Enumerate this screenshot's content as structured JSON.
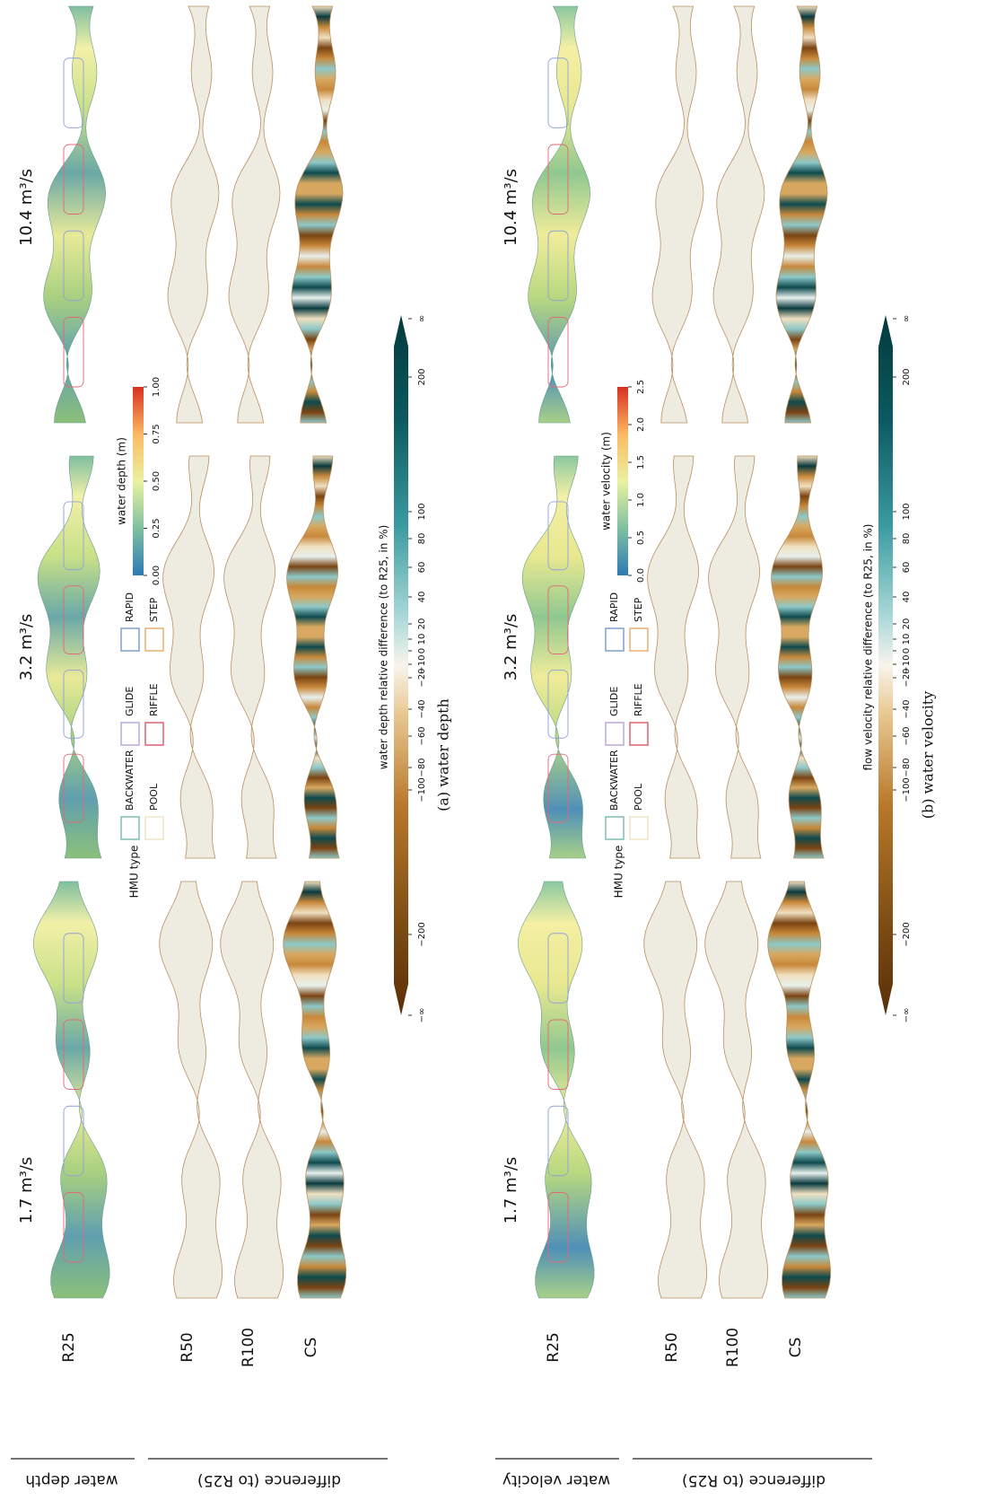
{
  "panels": [
    {
      "row_groups": [
        "water depth",
        "difference (to R25)"
      ],
      "columns": [
        "1.7 m³/s",
        "3.2 m³/s",
        "10.4 m³/s"
      ],
      "rows": [
        "R25",
        "R50",
        "R100",
        "CS"
      ],
      "legend": {
        "title": "HMU type",
        "items": [
          "BACKWATER",
          "GLIDE",
          "RAPID",
          "POOL",
          "RIFFLE",
          "STEP"
        ]
      },
      "scale": {
        "title": "water depth (m)",
        "ticks": [
          "0.00",
          "0.25",
          "0.50",
          "0.75",
          "1.00"
        ]
      },
      "diff_scale": {
        "title": "water depth relative difference (to R25, in %)",
        "ticks": [
          "−∞",
          "−200",
          "−100",
          "−80",
          "−60",
          "−40",
          "−20",
          "−10",
          "0",
          "10",
          "20",
          "40",
          "60",
          "80",
          "100",
          "200",
          "∞"
        ]
      },
      "caption": "(a) water depth"
    },
    {
      "row_groups": [
        "water velocity",
        "difference (to R25)"
      ],
      "columns": [
        "1.7 m³/s",
        "3.2 m³/s",
        "10.4 m³/s"
      ],
      "rows": [
        "R25",
        "R50",
        "R100",
        "CS"
      ],
      "legend": {
        "title": "HMU type",
        "items": [
          "BACKWATER",
          "GLIDE",
          "RAPID",
          "POOL",
          "RIFFLE",
          "STEP"
        ]
      },
      "scale": {
        "title": "water velocity (m)",
        "ticks": [
          "0.0",
          "0.5",
          "1.0",
          "1.5",
          "2.0",
          "2.5"
        ]
      },
      "diff_scale": {
        "title": "flow velocity relative difference (to R25, in %)",
        "ticks": [
          "−∞",
          "−200",
          "−100",
          "−80",
          "−60",
          "−40",
          "−20",
          "−10",
          "0",
          "10",
          "20",
          "40",
          "60",
          "80",
          "100",
          "200",
          "∞"
        ]
      },
      "caption": "(b) water velocity"
    }
  ]
}
